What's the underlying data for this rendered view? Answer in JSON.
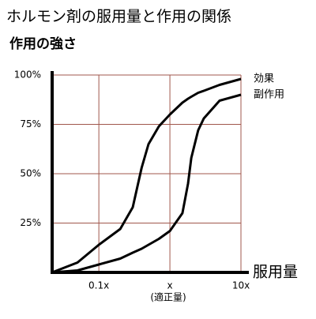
{
  "chart_data": {
    "type": "line",
    "title": "ホルモン剤の服用量と作用の関係",
    "y_label": "作用の強さ",
    "x_label": "服用量",
    "x_annotation": "(適正量)",
    "x": [
      0.022,
      0.05,
      0.1,
      0.2,
      0.3,
      0.4,
      0.5,
      0.7,
      1,
      1.5,
      1.8,
      2,
      2.5,
      3,
      5,
      10
    ],
    "series": [
      {
        "name": "効果",
        "color": "#000000",
        "values": [
          0,
          5,
          14,
          22,
          33,
          53,
          65,
          74,
          80,
          86,
          88,
          89,
          91,
          92,
          95,
          98
        ]
      },
      {
        "name": "副作用",
        "color": "#000000",
        "values": [
          0,
          1,
          4,
          7,
          10,
          12,
          14,
          17,
          21,
          30,
          45,
          58,
          72,
          78,
          87,
          90
        ]
      }
    ],
    "xscale": "log",
    "xlim": [
      0.022,
      10
    ],
    "xticks": [
      {
        "value": 0.1,
        "label": "0.1x"
      },
      {
        "value": 1,
        "label": "x"
      },
      {
        "value": 10,
        "label": "10x"
      }
    ],
    "ylim": [
      0,
      100
    ],
    "yticks": [
      {
        "value": 25,
        "label": "25%"
      },
      {
        "value": 50,
        "label": "50%"
      },
      {
        "value": 75,
        "label": "75%"
      },
      {
        "value": 100,
        "label": "100%"
      }
    ],
    "grid": true,
    "grid_color": "#a0574c"
  }
}
